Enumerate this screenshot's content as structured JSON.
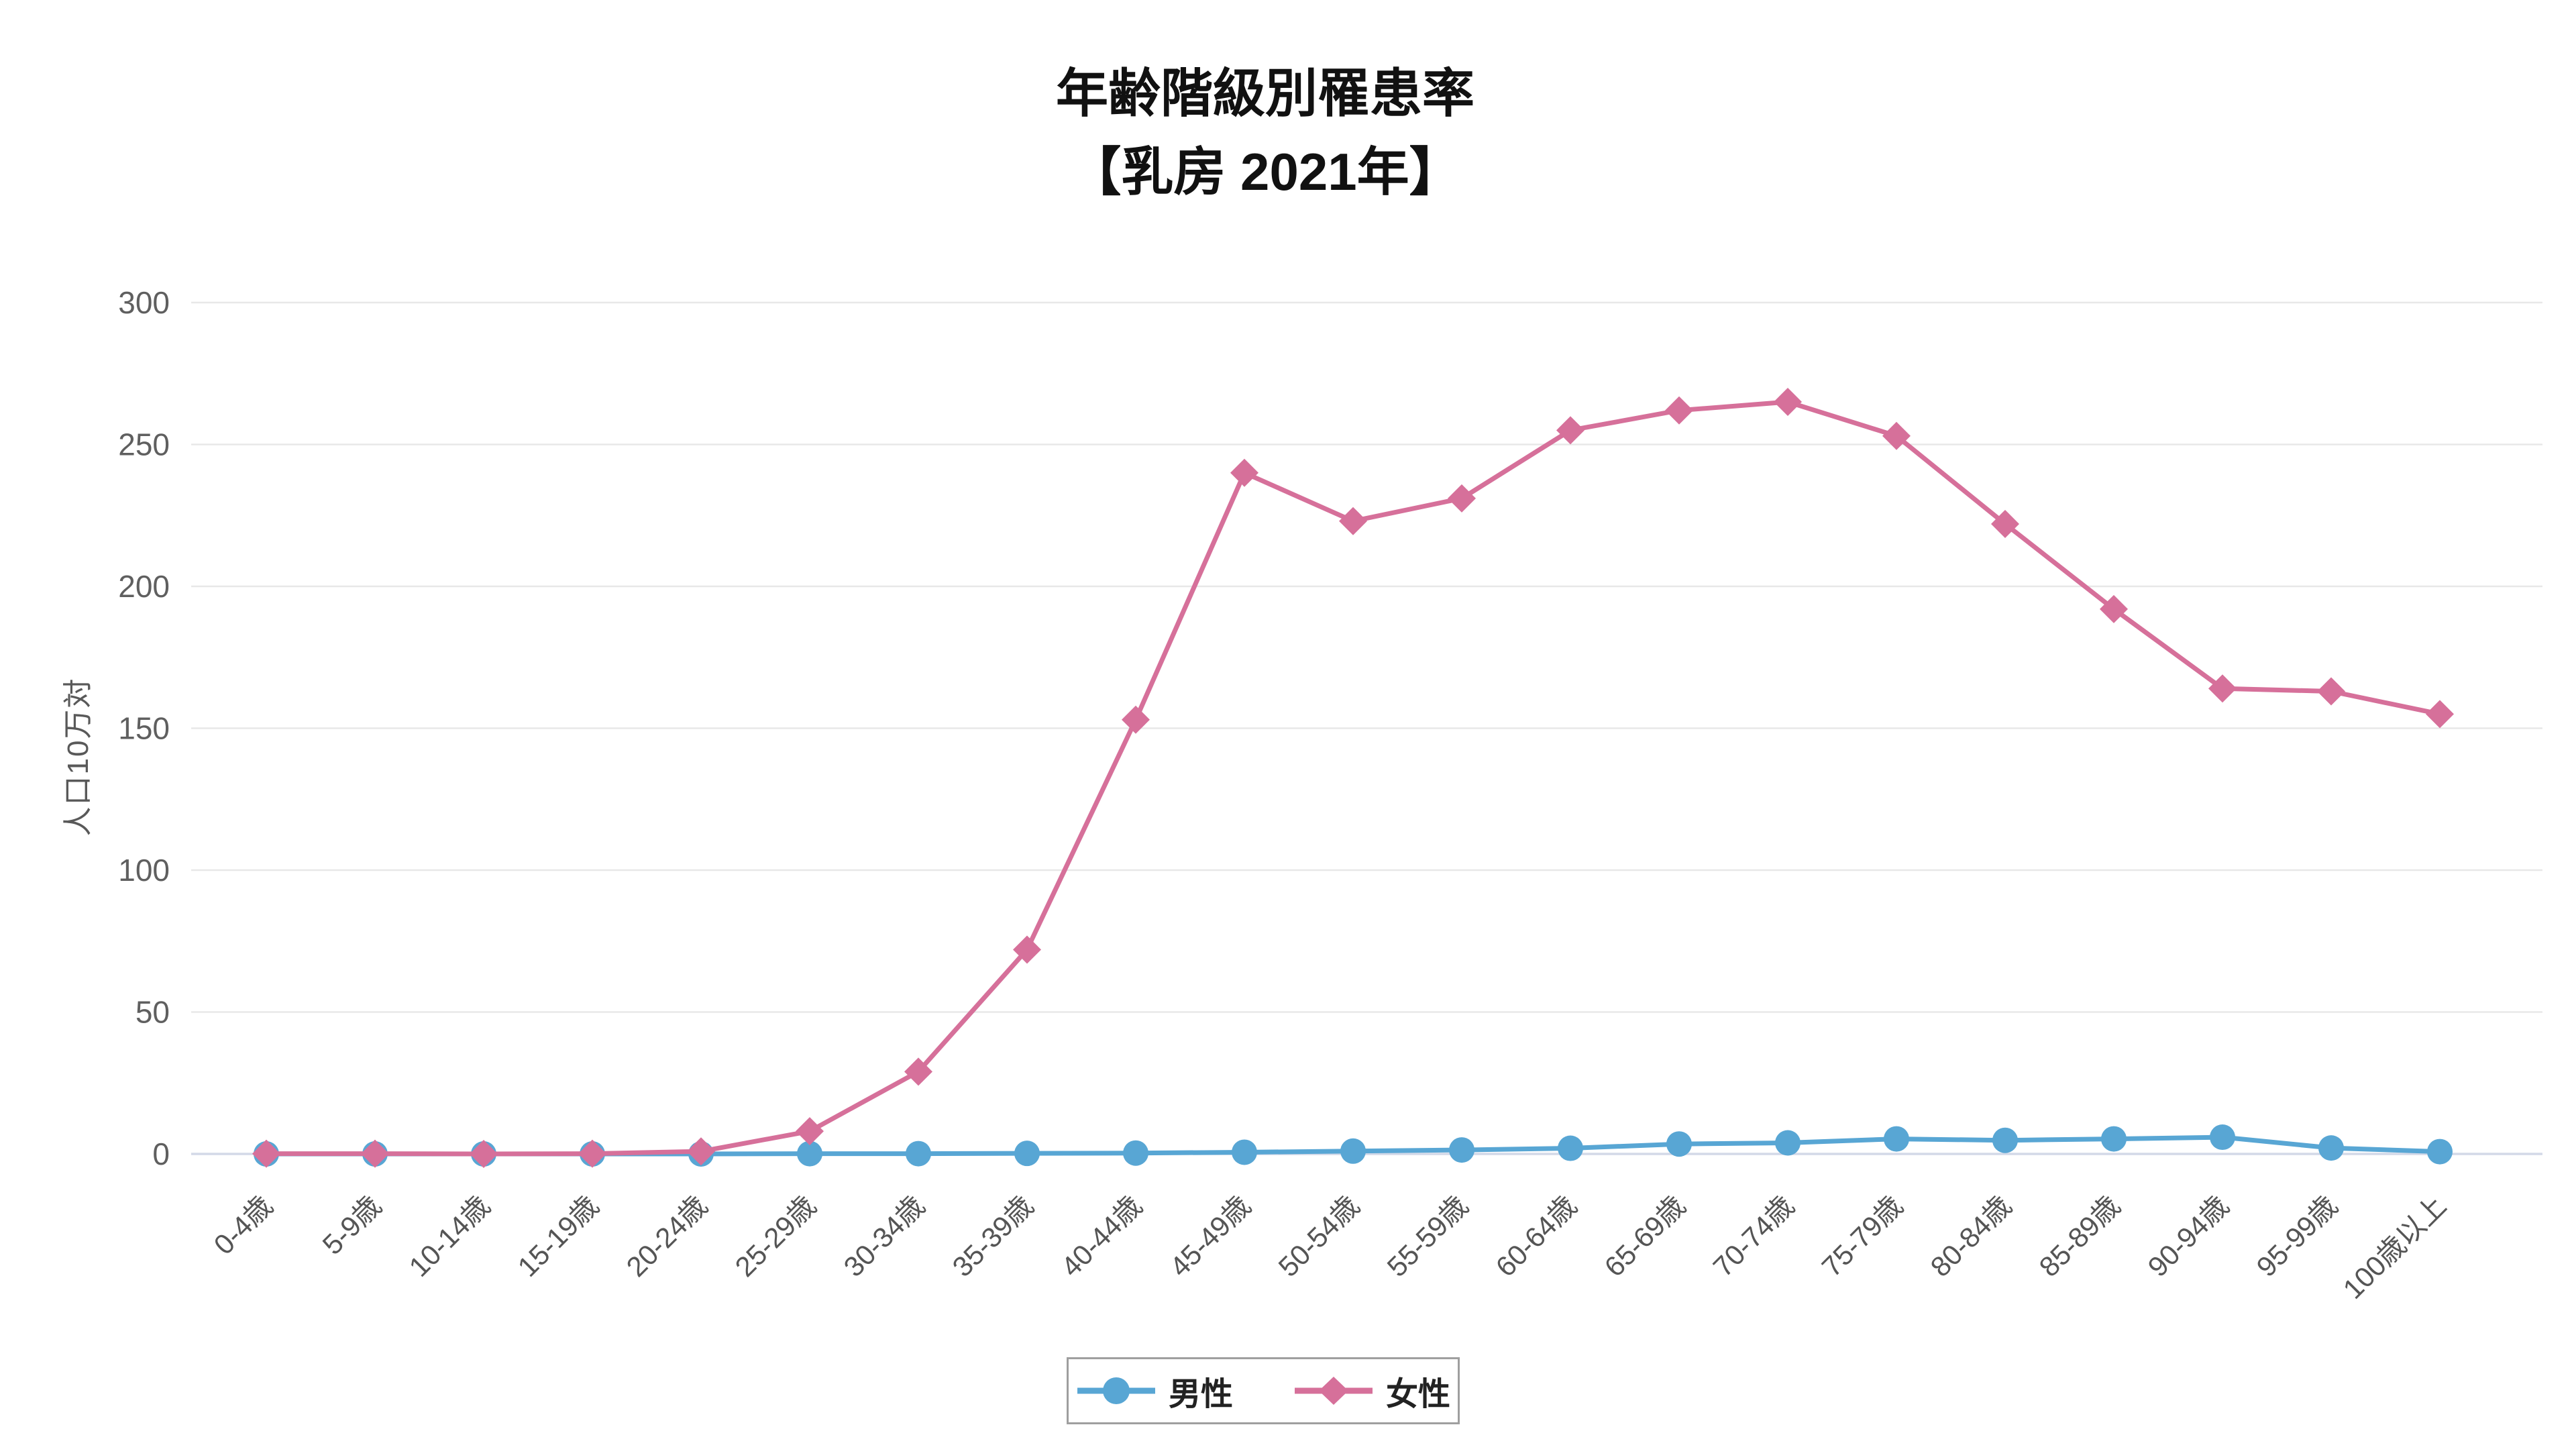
{
  "chart_data": {
    "type": "line",
    "title": "年齢階級別罹患率",
    "subtitle": "【乳房 2021年】",
    "y_axis_label": "人口10万対",
    "categories": [
      "0-4歳",
      "5-9歳",
      "10-14歳",
      "15-19歳",
      "20-24歳",
      "25-29歳",
      "30-34歳",
      "35-39歳",
      "40-44歳",
      "45-49歳",
      "50-54歳",
      "55-59歳",
      "60-64歳",
      "65-69歳",
      "70-74歳",
      "75-79歳",
      "80-84歳",
      "85-89歳",
      "90-94歳",
      "95-99歳",
      "100歳以上"
    ],
    "y_ticks": [
      0,
      50,
      100,
      150,
      200,
      250,
      300
    ],
    "y_max": 300,
    "ylim": [
      0,
      300
    ],
    "grid": true,
    "x_tick_rotation": -45,
    "legend_position": "bottom",
    "colors": {
      "grid": "#e8e8e8",
      "axis_line": "#d3d9e8"
    },
    "series": [
      {
        "name": "男性",
        "color": "#58a6d4",
        "marker": "circle",
        "values": [
          0,
          0,
          0,
          0,
          0,
          0.1,
          0.1,
          0.2,
          0.3,
          0.6,
          1.0,
          1.4,
          2.0,
          3.5,
          3.9,
          5.3,
          4.8,
          5.3,
          5.9,
          2.1,
          0.8
        ]
      },
      {
        "name": "女性",
        "color": "#d6709a",
        "marker": "diamond",
        "values": [
          0.1,
          0.1,
          0,
          0.1,
          0.9,
          8,
          29,
          72,
          153,
          240,
          223,
          231,
          255,
          262,
          265,
          253,
          222,
          192,
          164,
          163,
          155
        ]
      }
    ]
  }
}
